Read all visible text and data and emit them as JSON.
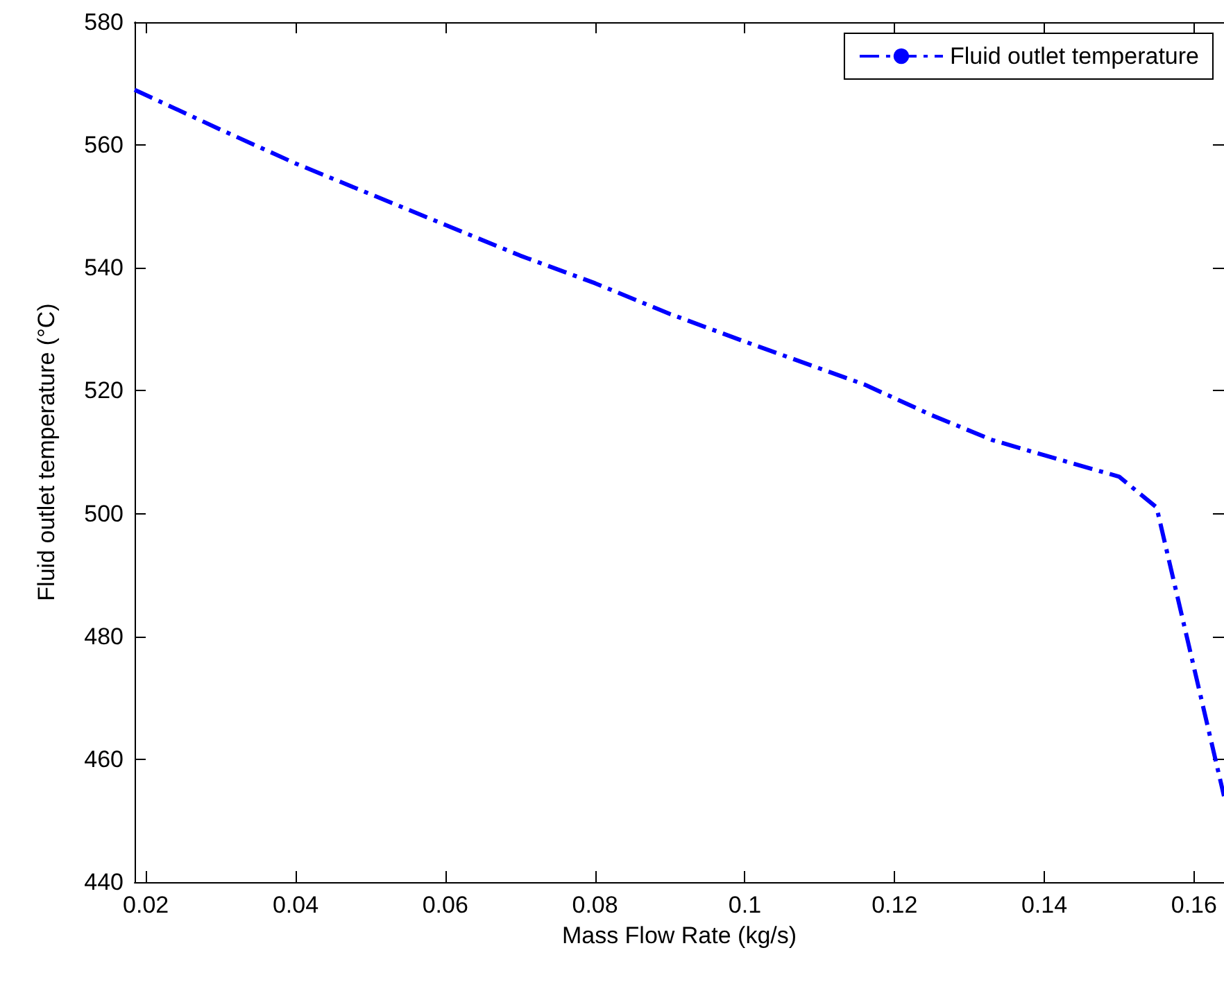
{
  "chart_data": {
    "type": "line",
    "xlabel": "Mass Flow Rate (kg/s)",
    "ylabel": "Fluid outlet temperature (°C)",
    "x": [
      0.0185,
      0.03,
      0.04,
      0.05,
      0.06,
      0.07,
      0.08,
      0.09,
      0.1,
      0.116,
      0.125,
      0.133,
      0.14,
      0.15,
      0.155,
      0.164
    ],
    "series": [
      {
        "name": "Fluid outlet temperature",
        "color": "#0000ff",
        "values": [
          569,
          562.5,
          557,
          552,
          547,
          542,
          537.5,
          532.5,
          528,
          521,
          516,
          512,
          509.5,
          506,
          501,
          454
        ]
      }
    ],
    "xlim": [
      0.0185,
      0.164
    ],
    "xticks": [
      {
        "value": 0.02,
        "label": "0.02"
      },
      {
        "value": 0.04,
        "label": "0.04"
      },
      {
        "value": 0.06,
        "label": "0.06"
      },
      {
        "value": 0.08,
        "label": "0.08"
      },
      {
        "value": 0.1,
        "label": "0.1"
      },
      {
        "value": 0.12,
        "label": "0.12"
      },
      {
        "value": 0.14,
        "label": "0.14"
      },
      {
        "value": 0.16,
        "label": "0.16"
      }
    ],
    "ylim": [
      440,
      580
    ],
    "yticks": [
      440,
      460,
      480,
      500,
      520,
      540,
      560,
      580
    ],
    "grid": false,
    "legend": "top right",
    "marker": "none",
    "line_style": "dashed"
  }
}
